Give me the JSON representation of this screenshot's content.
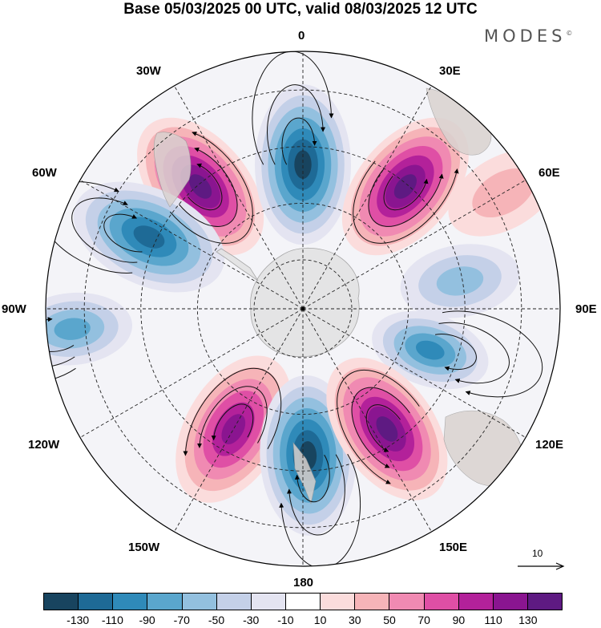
{
  "title": "Base 05/03/2025 00 UTC, valid 08/03/2025 12 UTC",
  "brand": "MODES",
  "brand_mark": "©",
  "longitude_labels": {
    "l0": "0",
    "l30e": "30E",
    "l60e": "60E",
    "l90e": "90E",
    "l120e": "120E",
    "l150e": "150E",
    "l180": "180",
    "l150w": "150W",
    "l120w": "120W",
    "l90w": "90W",
    "l60w": "60W",
    "l30w": "30W"
  },
  "reference_vector": {
    "label": "10"
  },
  "colorbar": {
    "colors": [
      "#18445f",
      "#1e6a96",
      "#2f8ab9",
      "#5aa6cd",
      "#93c0df",
      "#c4d0e8",
      "#e4e4f1",
      "#ffffff",
      "#fbdcdc",
      "#f6b4b8",
      "#f08ab2",
      "#df4fa5",
      "#b3219a",
      "#8a1590",
      "#5e1a82"
    ],
    "ticks": [
      "-130",
      "-110",
      "-90",
      "-70",
      "-50",
      "-30",
      "-10",
      "10",
      "30",
      "50",
      "70",
      "90",
      "110",
      "130"
    ]
  },
  "anomaly_centers": [
    {
      "lon_deg": -40,
      "colat": 0.62,
      "value": 125
    },
    {
      "lon_deg": 0,
      "colat": 0.56,
      "value": -135
    },
    {
      "lon_deg": 40,
      "colat": 0.62,
      "value": 120
    },
    {
      "lon_deg": -65,
      "colat": 0.66,
      "value": -110
    },
    {
      "lon_deg": 108,
      "colat": 0.52,
      "value": -90
    },
    {
      "lon_deg": -150,
      "colat": 0.54,
      "value": 118
    },
    {
      "lon_deg": 178,
      "colat": 0.57,
      "value": -130
    },
    {
      "lon_deg": 145,
      "colat": 0.57,
      "value": 125
    },
    {
      "lon_deg": 80,
      "colat": 0.62,
      "value": -40
    },
    {
      "lon_deg": -95,
      "colat": 0.9,
      "value": -60
    },
    {
      "lon_deg": 60,
      "colat": 0.9,
      "value": 30
    }
  ]
}
